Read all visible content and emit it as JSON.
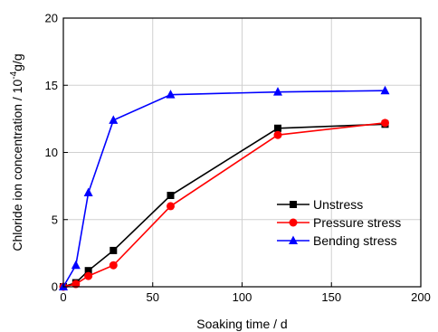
{
  "chart_data": {
    "type": "line",
    "xlabel": "Soaking time / d",
    "ylabel_prefix": "Chloride ion concentration / 10",
    "ylabel_exp": "-4",
    "ylabel_suffix": "g/g",
    "xlim": [
      0,
      200
    ],
    "ylim": [
      0,
      20
    ],
    "xticks": [
      "0",
      "50",
      "100",
      "150",
      "200"
    ],
    "yticks": [
      "0",
      "5",
      "10",
      "15",
      "20"
    ],
    "grid": true,
    "legend_position": "right-middle",
    "series": [
      {
        "name": "Unstress",
        "color": "#000000",
        "marker": "square",
        "x": [
          0,
          7,
          14,
          28,
          60,
          120,
          180
        ],
        "y": [
          0,
          0.3,
          1.2,
          2.7,
          6.8,
          11.8,
          12.1
        ]
      },
      {
        "name": "Pressure stress",
        "color": "#ff0000",
        "marker": "circle",
        "x": [
          0,
          7,
          14,
          28,
          60,
          120,
          180
        ],
        "y": [
          0,
          0.2,
          0.8,
          1.6,
          6.0,
          11.3,
          12.2
        ]
      },
      {
        "name": "Bending stress",
        "color": "#0000ff",
        "marker": "triangle",
        "x": [
          0,
          7,
          14,
          28,
          60,
          120,
          180
        ],
        "y": [
          0,
          1.6,
          7.0,
          12.4,
          14.3,
          14.5,
          14.6
        ]
      }
    ]
  }
}
